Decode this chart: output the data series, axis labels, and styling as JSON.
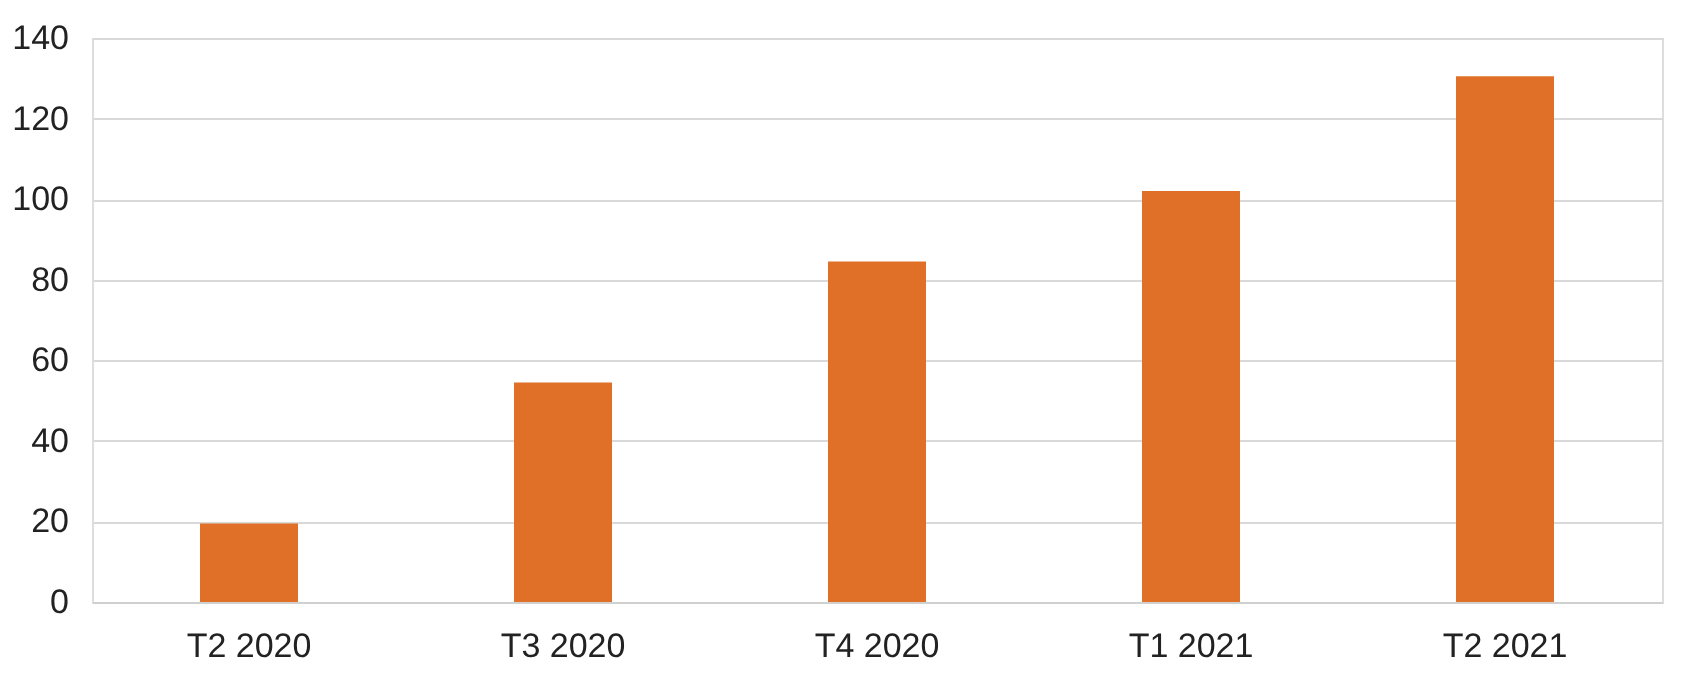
{
  "chart_data": {
    "type": "bar",
    "categories": [
      "T2 2020",
      "T3 2020",
      "T4 2020",
      "T1 2021",
      "T2 2021"
    ],
    "values": [
      19.5,
      54.5,
      84.5,
      102,
      130.5
    ],
    "color": "#e07028",
    "ylim": [
      0,
      140
    ],
    "yticks": [
      0,
      20,
      40,
      60,
      80,
      100,
      120,
      140
    ],
    "grid": "y"
  }
}
